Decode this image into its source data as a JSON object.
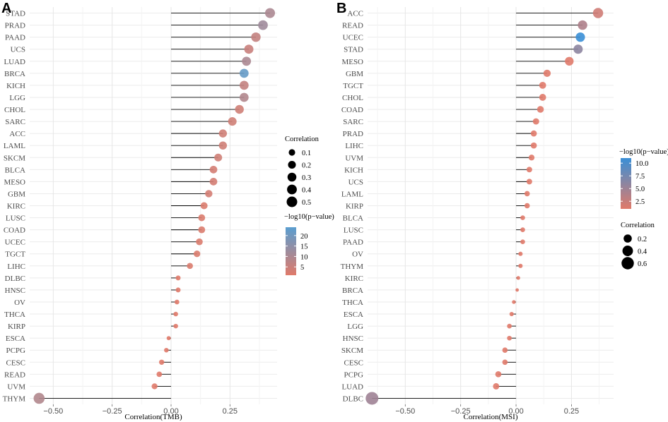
{
  "chart_data": [
    {
      "type": "lollipop",
      "panel_label": "A",
      "xlabel": "Correlation(TMB)",
      "xlim": [
        -0.6,
        0.45
      ],
      "xticks": [
        -0.5,
        -0.25,
        0.0,
        0.25
      ],
      "xtick_labels": [
        "−0.50",
        "−0.25",
        "0.00",
        "0.25"
      ],
      "grid": true,
      "categories": [
        "STAD",
        "PRAD",
        "PAAD",
        "UCS",
        "LUAD",
        "BRCA",
        "KICH",
        "LGG",
        "CHOL",
        "SARC",
        "ACC",
        "LAML",
        "SKCM",
        "BLCA",
        "MESO",
        "GBM",
        "KIRC",
        "LUSC",
        "COAD",
        "UCEC",
        "TGCT",
        "LIHC",
        "DLBC",
        "HNSC",
        "OV",
        "THCA",
        "KIRP",
        "ESCA",
        "PCPG",
        "CESC",
        "READ",
        "UVM",
        "THYM"
      ],
      "values": [
        0.42,
        0.39,
        0.36,
        0.33,
        0.32,
        0.31,
        0.31,
        0.31,
        0.29,
        0.26,
        0.22,
        0.22,
        0.2,
        0.18,
        0.18,
        0.16,
        0.14,
        0.13,
        0.13,
        0.12,
        0.11,
        0.08,
        0.03,
        0.03,
        0.025,
        0.02,
        0.02,
        -0.01,
        -0.02,
        -0.04,
        -0.05,
        -0.07,
        -0.56
      ],
      "neglog10p": [
        10,
        12,
        6,
        5,
        10,
        22,
        6,
        9,
        4,
        4,
        4,
        4,
        4,
        3,
        3,
        3,
        2,
        2,
        2,
        2,
        2,
        2,
        1,
        1,
        1,
        1,
        1,
        1,
        1,
        1,
        1,
        1,
        9
      ],
      "size_legend": {
        "title": "Correlation",
        "values": [
          0.1,
          0.2,
          0.3,
          0.4,
          0.5
        ],
        "labels": [
          "0.1",
          "0.2",
          "0.3",
          "0.4",
          "0.5"
        ]
      },
      "color_legend": {
        "title": "−log10(p−value)",
        "range": [
          1,
          24
        ],
        "breaks": [
          5,
          10,
          15,
          20
        ],
        "labels": [
          "5",
          "10",
          "15",
          "20"
        ],
        "low_color": "#e07a6a",
        "high_color": "#5a9ed0"
      }
    },
    {
      "type": "lollipop",
      "panel_label": "B",
      "xlabel": "Correlation(MSI)",
      "xlim": [
        -0.67,
        0.44
      ],
      "xticks": [
        -0.5,
        -0.25,
        0.0,
        0.25
      ],
      "xtick_labels": [
        "−0.50",
        "−0.25",
        "0.00",
        "0.25"
      ],
      "grid": true,
      "categories": [
        "ACC",
        "READ",
        "UCEC",
        "STAD",
        "MESO",
        "GBM",
        "TGCT",
        "CHOL",
        "COAD",
        "SARC",
        "PRAD",
        "LIHC",
        "UVM",
        "KICH",
        "UCS",
        "LAML",
        "KIRP",
        "BLCA",
        "LUSC",
        "PAAD",
        "OV",
        "THYM",
        "KIRC",
        "BRCA",
        "THCA",
        "ESCA",
        "LGG",
        "HNSC",
        "SKCM",
        "CESC",
        "PCPG",
        "LUAD",
        "DLBC"
      ],
      "values": [
        0.37,
        0.3,
        0.29,
        0.28,
        0.24,
        0.14,
        0.12,
        0.12,
        0.11,
        0.09,
        0.08,
        0.08,
        0.07,
        0.06,
        0.06,
        0.05,
        0.05,
        0.03,
        0.03,
        0.03,
        0.02,
        0.02,
        0.01,
        0.005,
        -0.01,
        -0.02,
        -0.03,
        -0.03,
        -0.05,
        -0.05,
        -0.08,
        -0.09,
        -0.65
      ],
      "neglog10p": [
        2,
        4,
        11,
        6,
        1,
        1,
        1,
        1,
        1,
        1,
        1,
        1,
        1,
        1,
        1,
        1,
        1,
        1,
        1,
        1,
        1,
        1,
        1,
        1,
        1,
        1,
        1,
        1,
        1,
        1,
        1,
        1,
        5
      ],
      "size_legend": {
        "title": "Correlation",
        "values": [
          0.2,
          0.4,
          0.6
        ],
        "labels": [
          "0.2",
          "0.4",
          "0.6"
        ]
      },
      "color_legend": {
        "title": "−log10(p−value)",
        "range": [
          1,
          11
        ],
        "breaks": [
          2.5,
          5.0,
          7.5,
          10.0
        ],
        "labels": [
          "2.5",
          "5.0",
          "7.5",
          "10.0"
        ],
        "low_color": "#e07a6a",
        "high_color": "#3a8fd6"
      }
    }
  ]
}
